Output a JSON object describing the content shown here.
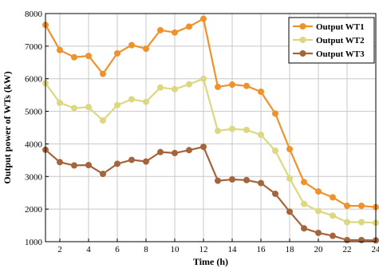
{
  "chart_data": {
    "type": "line",
    "xlabel": "Time (h)",
    "ylabel": "Output power of WTs (kW)",
    "xlim": [
      1,
      24
    ],
    "ylim": [
      1000,
      8000
    ],
    "x_ticks": [
      2,
      4,
      6,
      8,
      10,
      12,
      14,
      16,
      18,
      20,
      22,
      24
    ],
    "y_ticks": [
      1000,
      2000,
      3000,
      4000,
      5000,
      6000,
      7000,
      8000
    ],
    "grid": true,
    "legend_position": "top-right",
    "x": [
      1,
      2,
      3,
      4,
      5,
      6,
      7,
      8,
      9,
      10,
      11,
      12,
      13,
      14,
      15,
      16,
      17,
      18,
      19,
      20,
      21,
      22,
      23,
      24
    ],
    "series": [
      {
        "name": "Output WT1",
        "color": "#f0922c",
        "values": [
          7650,
          6880,
          6660,
          6700,
          6150,
          6780,
          7030,
          6920,
          7490,
          7420,
          7600,
          7840,
          5750,
          5820,
          5780,
          5600,
          4930,
          3840,
          2830,
          2540,
          2360,
          2100,
          2100,
          2060
        ]
      },
      {
        "name": "Output WT2",
        "color": "#dcd882",
        "values": [
          5860,
          5260,
          5100,
          5130,
          4720,
          5190,
          5370,
          5290,
          5730,
          5680,
          5830,
          6000,
          4400,
          4460,
          4430,
          4280,
          3790,
          2940,
          2160,
          1940,
          1800,
          1600,
          1600,
          1580
        ]
      },
      {
        "name": "Output WT3",
        "color": "#a5653c",
        "values": [
          3820,
          3440,
          3340,
          3350,
          3080,
          3390,
          3510,
          3460,
          3750,
          3720,
          3810,
          3910,
          2870,
          2910,
          2890,
          2800,
          2470,
          1920,
          1410,
          1270,
          1180,
          1050,
          1050,
          1040
        ]
      }
    ]
  }
}
